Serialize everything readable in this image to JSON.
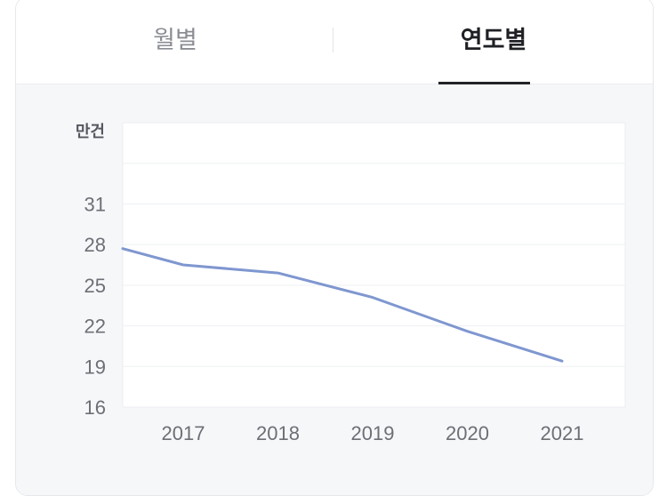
{
  "tabs": {
    "monthly_label": "월별",
    "yearly_label": "연도별",
    "selected": "yearly"
  },
  "chart_data": {
    "type": "line",
    "unit": "만건",
    "categories": [
      "2017",
      "2018",
      "2019",
      "2020",
      "2021"
    ],
    "series": [
      {
        "x": [
          "2016",
          "2017",
          "2018",
          "2019",
          "2020",
          "2021"
        ],
        "values": [
          27.7,
          26.5,
          25.9,
          24.1,
          21.6,
          19.4
        ],
        "color": "#7f97d0"
      }
    ],
    "yticks": [
      16,
      19,
      22,
      25,
      28,
      31
    ],
    "ylim": [
      16,
      37
    ],
    "grid": true,
    "title": "",
    "xlabel": "",
    "ylabel": ""
  }
}
